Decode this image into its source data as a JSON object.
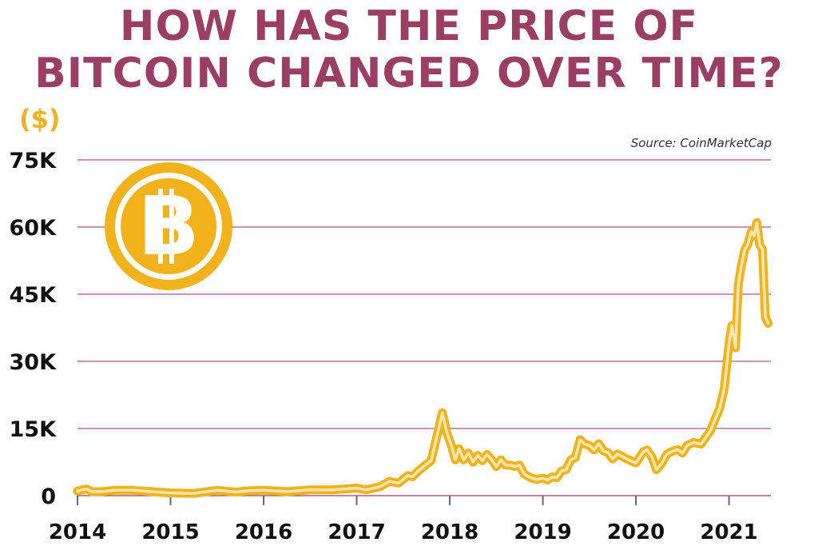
{
  "title": {
    "line1": "HOW HAS THE PRICE OF",
    "line2": "BITCOIN CHANGED OVER TIME?"
  },
  "unit_label": "($)",
  "source": "Source: CoinMarketCap",
  "logo": {
    "icon": "bitcoin-logo-icon",
    "glyph": "B"
  },
  "colors": {
    "title": "#9a3f63",
    "accent": "#f2b21c",
    "line_outer": "#f2b21c",
    "line_inner": "#fbe7ac",
    "gridline": "#9a3f63",
    "axis": "#7a5a7a"
  },
  "chart_data": {
    "type": "line",
    "title": "HOW HAS THE PRICE OF BITCOIN CHANGED OVER TIME?",
    "xlabel": "",
    "ylabel": "($)",
    "ylim": [
      0,
      75000
    ],
    "yticks": [
      0,
      15000,
      30000,
      45000,
      60000,
      75000
    ],
    "ytick_labels": [
      "0",
      "15K",
      "30K",
      "45K",
      "60K",
      "75K"
    ],
    "xlim": [
      2014.0,
      2021.45
    ],
    "xticks": [
      2014,
      2015,
      2016,
      2017,
      2018,
      2019,
      2020,
      2021
    ],
    "xtick_labels": [
      "2014",
      "2015",
      "2016",
      "2017",
      "2018",
      "2019",
      "2020",
      "2021"
    ],
    "grid": true,
    "legend": "none",
    "series": [
      {
        "x": [
          2014.0,
          2014.05,
          2014.1,
          2014.15,
          2014.25,
          2014.4,
          2014.6,
          2014.8,
          2015.0,
          2015.25,
          2015.5,
          2015.7,
          2015.85,
          2016.0,
          2016.25,
          2016.5,
          2016.75,
          2017.0,
          2017.1,
          2017.25,
          2017.35,
          2017.45,
          2017.55,
          2017.6,
          2017.65,
          2017.72,
          2017.8,
          2017.87,
          2017.92,
          2017.97,
          2018.02,
          2018.06,
          2018.1,
          2018.15,
          2018.2,
          2018.25,
          2018.3,
          2018.35,
          2018.4,
          2018.45,
          2018.5,
          2018.55,
          2018.6,
          2018.65,
          2018.7,
          2018.75,
          2018.8,
          2018.87,
          2018.93,
          2019.0,
          2019.05,
          2019.1,
          2019.15,
          2019.2,
          2019.25,
          2019.3,
          2019.35,
          2019.4,
          2019.45,
          2019.5,
          2019.55,
          2019.6,
          2019.65,
          2019.7,
          2019.75,
          2019.8,
          2019.85,
          2019.9,
          2020.0,
          2020.08,
          2020.12,
          2020.17,
          2020.22,
          2020.28,
          2020.33,
          2020.38,
          2020.45,
          2020.5,
          2020.55,
          2020.62,
          2020.7,
          2020.8,
          2020.9,
          2020.95,
          2021.0,
          2021.03,
          2021.07,
          2021.1,
          2021.13,
          2021.17,
          2021.2,
          2021.24,
          2021.27,
          2021.3,
          2021.33,
          2021.36,
          2021.39,
          2021.42
        ],
        "values": [
          1000,
          1300,
          1500,
          900,
          900,
          1200,
          1200,
          900,
          600,
          500,
          1200,
          800,
          1100,
          1200,
          900,
          1300,
          1300,
          1700,
          1300,
          2000,
          3200,
          2800,
          4500,
          4200,
          5300,
          6500,
          7800,
          14000,
          18500,
          14000,
          11000,
          8000,
          10500,
          8000,
          9500,
          7500,
          9000,
          7800,
          9200,
          8000,
          6500,
          8000,
          6800,
          6800,
          6500,
          6800,
          4800,
          4000,
          3600,
          3900,
          3500,
          4200,
          4000,
          5500,
          5800,
          8000,
          8500,
          12500,
          11500,
          11200,
          10200,
          11600,
          10000,
          9600,
          8200,
          9300,
          8800,
          8200,
          7300,
          9800,
          10200,
          8700,
          5800,
          7300,
          9200,
          9800,
          10300,
          9500,
          11200,
          11900,
          11500,
          14500,
          19500,
          24000,
          34000,
          38000,
          33000,
          47000,
          51000,
          55000,
          56000,
          59000,
          58000,
          61000,
          56000,
          55000,
          40000,
          38500
        ]
      }
    ]
  }
}
